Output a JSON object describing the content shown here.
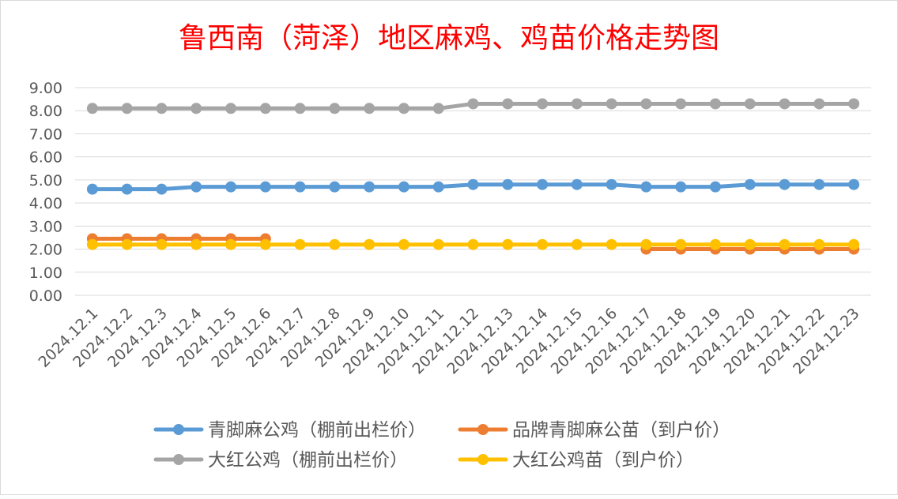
{
  "chart_data": {
    "type": "line",
    "title": "鲁西南（菏泽）地区麻鸡、鸡苗价格走势图",
    "xlabel": "",
    "ylabel": "",
    "ylim": [
      0,
      9
    ],
    "yticks": [
      "0.00",
      "1.00",
      "2.00",
      "3.00",
      "4.00",
      "5.00",
      "6.00",
      "7.00",
      "8.00",
      "9.00"
    ],
    "grid": true,
    "legend_position": "bottom",
    "categories": [
      "2024.12.1",
      "2024.12.2",
      "2024.12.3",
      "2024.12.4",
      "2024.12.5",
      "2024.12.6",
      "2024.12.7",
      "2024.12.8",
      "2024.12.9",
      "2024.12.10",
      "2024.12.11",
      "2024.12.12",
      "2024.12.13",
      "2024.12.14",
      "2024.12.15",
      "2024.12.16",
      "2024.12.17",
      "2024.12.18",
      "2024.12.19",
      "2024.12.20",
      "2024.12.21",
      "2024.12.22",
      "2024.12.23"
    ],
    "series": [
      {
        "name": "大红公鸡（棚前出栏价）",
        "color": "#A5A5A5",
        "values": [
          8.1,
          8.1,
          8.1,
          8.1,
          8.1,
          8.1,
          8.1,
          8.1,
          8.1,
          8.1,
          8.1,
          8.3,
          8.3,
          8.3,
          8.3,
          8.3,
          8.3,
          8.3,
          8.3,
          8.3,
          8.3,
          8.3,
          8.3
        ]
      },
      {
        "name": "青脚麻公鸡（棚前出栏价）",
        "color": "#5B9BD5",
        "values": [
          4.6,
          4.6,
          4.6,
          4.7,
          4.7,
          4.7,
          4.7,
          4.7,
          4.7,
          4.7,
          4.7,
          4.8,
          4.8,
          4.8,
          4.8,
          4.8,
          4.7,
          4.7,
          4.7,
          4.8,
          4.8,
          4.8,
          4.8
        ]
      },
      {
        "name": "品牌青脚麻公苗（到户价）",
        "color": "#ED7D31",
        "values": [
          2.45,
          2.45,
          2.45,
          2.45,
          2.45,
          2.45,
          null,
          null,
          null,
          null,
          null,
          null,
          null,
          null,
          null,
          null,
          2.0,
          2.0,
          2.0,
          2.0,
          2.0,
          2.0,
          2.0
        ]
      },
      {
        "name": "大红公鸡苗（到户价）",
        "color": "#FFC000",
        "values": [
          2.2,
          2.2,
          2.2,
          2.2,
          2.2,
          2.2,
          2.2,
          2.2,
          2.2,
          2.2,
          2.2,
          2.2,
          2.2,
          2.2,
          2.2,
          2.2,
          2.2,
          2.2,
          2.2,
          2.2,
          2.2,
          2.2,
          2.2
        ]
      }
    ],
    "legend_order": [
      1,
      2,
      0,
      3
    ],
    "title_color": "#FF0000"
  }
}
